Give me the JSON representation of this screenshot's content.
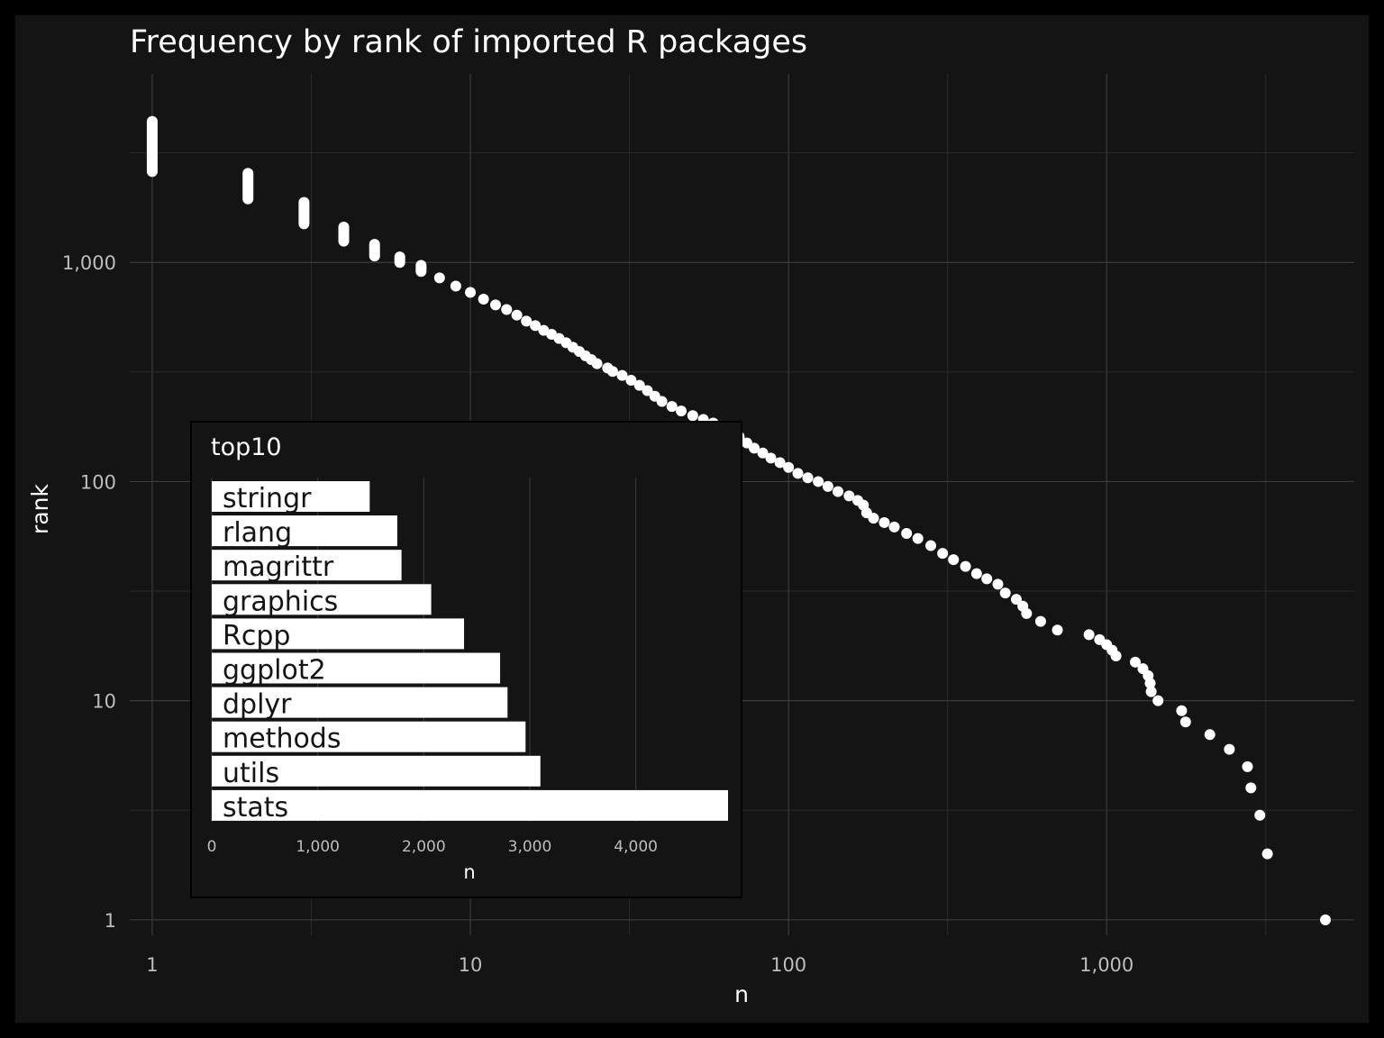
{
  "chart_data": [
    {
      "type": "scatter",
      "title": "Frequency by rank of imported R packages",
      "xlabel": "n",
      "ylabel": "rank",
      "xscale": "log10",
      "yscale": "log10",
      "xlim": [
        0.85,
        6000
      ],
      "ylim": [
        0.85,
        6000
      ],
      "xticks": [
        {
          "value": 1,
          "label": "1"
        },
        {
          "value": 10,
          "label": "10"
        },
        {
          "value": 100,
          "label": "100"
        },
        {
          "value": 1000,
          "label": "1,000"
        }
      ],
      "yticks": [
        {
          "value": 1,
          "label": "1"
        },
        {
          "value": 10,
          "label": "10"
        },
        {
          "value": 100,
          "label": "100"
        },
        {
          "value": 1000,
          "label": "1,000"
        }
      ],
      "grid": true,
      "point_color": "#ffffff",
      "tied_ranges": [
        {
          "n": 1,
          "rank_min": 2600,
          "rank_max": 4400
        },
        {
          "n": 2,
          "rank_min": 1950,
          "rank_max": 2550
        },
        {
          "n": 3,
          "rank_min": 1500,
          "rank_max": 1880
        },
        {
          "n": 4,
          "rank_min": 1250,
          "rank_max": 1450
        },
        {
          "n": 5,
          "rank_min": 1070,
          "rank_max": 1210
        },
        {
          "n": 6,
          "rank_min": 1000,
          "rank_max": 1060
        },
        {
          "n": 7,
          "rank_min": 910,
          "rank_max": 970
        }
      ],
      "points": [
        {
          "n": 8,
          "rank": 850
        },
        {
          "n": 9,
          "rank": 780
        },
        {
          "n": 10,
          "rank": 730
        },
        {
          "n": 11,
          "rank": 680
        },
        {
          "n": 12,
          "rank": 640
        },
        {
          "n": 13,
          "rank": 610
        },
        {
          "n": 14,
          "rank": 575
        },
        {
          "n": 15,
          "rank": 540
        },
        {
          "n": 16,
          "rank": 515
        },
        {
          "n": 17,
          "rank": 490
        },
        {
          "n": 18,
          "rank": 470
        },
        {
          "n": 19,
          "rank": 450
        },
        {
          "n": 20,
          "rank": 430
        },
        {
          "n": 21,
          "rank": 410
        },
        {
          "n": 22,
          "rank": 392
        },
        {
          "n": 23,
          "rank": 375
        },
        {
          "n": 24,
          "rank": 360
        },
        {
          "n": 25,
          "rank": 345
        },
        {
          "n": 27,
          "rank": 330
        },
        {
          "n": 28,
          "rank": 318
        },
        {
          "n": 30,
          "rank": 305
        },
        {
          "n": 32,
          "rank": 290
        },
        {
          "n": 34,
          "rank": 275
        },
        {
          "n": 36,
          "rank": 260
        },
        {
          "n": 38,
          "rank": 245
        },
        {
          "n": 40,
          "rank": 232
        },
        {
          "n": 43,
          "rank": 220
        },
        {
          "n": 46,
          "rank": 210
        },
        {
          "n": 50,
          "rank": 200
        },
        {
          "n": 54,
          "rank": 192
        },
        {
          "n": 58,
          "rank": 185
        },
        {
          "n": 62,
          "rank": 177
        },
        {
          "n": 66,
          "rank": 170
        },
        {
          "n": 70,
          "rank": 160
        },
        {
          "n": 74,
          "rank": 150
        },
        {
          "n": 78,
          "rank": 142
        },
        {
          "n": 83,
          "rank": 135
        },
        {
          "n": 88,
          "rank": 128
        },
        {
          "n": 94,
          "rank": 122
        },
        {
          "n": 100,
          "rank": 116
        },
        {
          "n": 107,
          "rank": 109
        },
        {
          "n": 115,
          "rank": 104
        },
        {
          "n": 124,
          "rank": 100
        },
        {
          "n": 133,
          "rank": 95
        },
        {
          "n": 143,
          "rank": 90
        },
        {
          "n": 155,
          "rank": 86
        },
        {
          "n": 165,
          "rank": 82
        },
        {
          "n": 172,
          "rank": 78
        },
        {
          "n": 176,
          "rank": 72
        },
        {
          "n": 185,
          "rank": 68
        },
        {
          "n": 200,
          "rank": 65
        },
        {
          "n": 215,
          "rank": 62
        },
        {
          "n": 235,
          "rank": 58
        },
        {
          "n": 255,
          "rank": 55
        },
        {
          "n": 280,
          "rank": 51
        },
        {
          "n": 305,
          "rank": 47
        },
        {
          "n": 330,
          "rank": 44
        },
        {
          "n": 360,
          "rank": 41
        },
        {
          "n": 390,
          "rank": 38
        },
        {
          "n": 420,
          "rank": 36
        },
        {
          "n": 455,
          "rank": 34
        },
        {
          "n": 480,
          "rank": 31
        },
        {
          "n": 520,
          "rank": 29
        },
        {
          "n": 545,
          "rank": 27
        },
        {
          "n": 560,
          "rank": 25
        },
        {
          "n": 620,
          "rank": 23
        },
        {
          "n": 700,
          "rank": 21
        },
        {
          "n": 880,
          "rank": 20
        },
        {
          "n": 950,
          "rank": 19
        },
        {
          "n": 1000,
          "rank": 18
        },
        {
          "n": 1040,
          "rank": 17
        },
        {
          "n": 1070,
          "rank": 16
        },
        {
          "n": 1230,
          "rank": 15
        },
        {
          "n": 1300,
          "rank": 14
        },
        {
          "n": 1350,
          "rank": 13
        },
        {
          "n": 1370,
          "rank": 12
        },
        {
          "n": 1380,
          "rank": 11
        },
        {
          "n": 1450,
          "rank": 10
        },
        {
          "n": 1720,
          "rank": 9
        },
        {
          "n": 1770,
          "rank": 8
        },
        {
          "n": 2110,
          "rank": 7
        },
        {
          "n": 2430,
          "rank": 6
        },
        {
          "n": 2770,
          "rank": 5
        },
        {
          "n": 2840,
          "rank": 4
        },
        {
          "n": 3030,
          "rank": 3
        },
        {
          "n": 3200,
          "rank": 2
        },
        {
          "n": 4870,
          "rank": 1
        }
      ]
    },
    {
      "type": "bar",
      "orientation": "horizontal",
      "title": "top10",
      "xlabel": "n",
      "xlim": [
        0,
        4870
      ],
      "xticks": [
        {
          "value": 0,
          "label": "0"
        },
        {
          "value": 1000,
          "label": "1,000"
        },
        {
          "value": 2000,
          "label": "2,000"
        },
        {
          "value": 3000,
          "label": "3,000"
        },
        {
          "value": 4000,
          "label": "4,000"
        }
      ],
      "bar_color": "#ffffff",
      "categories": [
        "stringr",
        "rlang",
        "magrittr",
        "graphics",
        "Rcpp",
        "ggplot2",
        "dplyr",
        "methods",
        "utils",
        "stats"
      ],
      "values": [
        1490,
        1750,
        1790,
        2070,
        2380,
        2720,
        2790,
        2960,
        3100,
        4870
      ]
    }
  ]
}
